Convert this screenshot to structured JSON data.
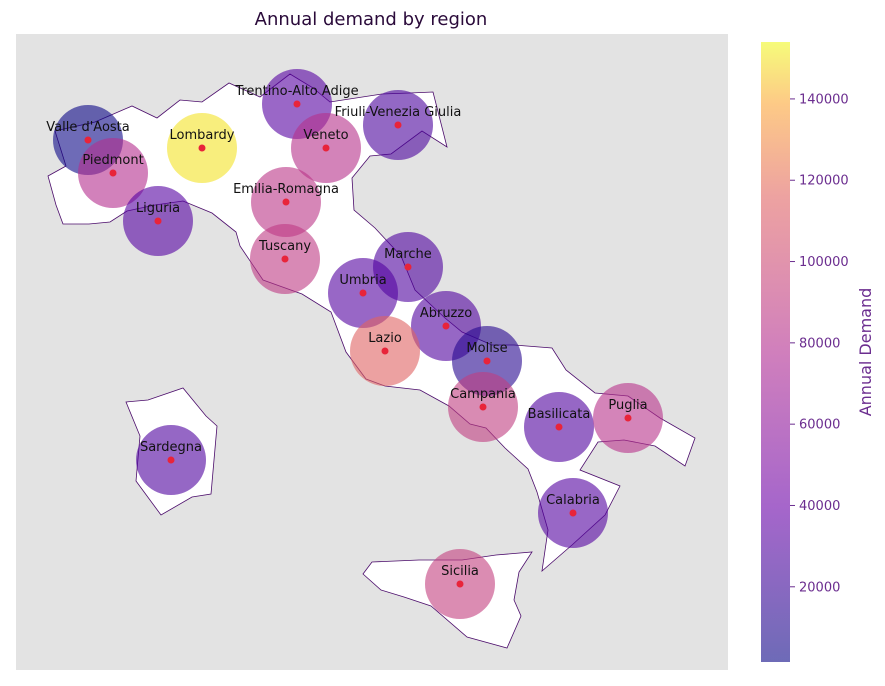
{
  "title": "Annual demand by region",
  "colorbar": {
    "label": "Annual Demand",
    "ticks": [
      20000,
      40000,
      60000,
      80000,
      100000,
      120000,
      140000
    ],
    "range": [
      1500,
      154000
    ],
    "colormap": "plasma",
    "alpha": 0.6
  },
  "colors": {
    "map_background": "#e3e3e3",
    "land_fill": "#ffffff",
    "border": "#4b0c6b",
    "point": "#e8243a",
    "tick_text": "#6b2d8f",
    "title_text": "#2a0a3a"
  },
  "regions": [
    {
      "name": "Valle d'Aosta",
      "demand": 1500
    },
    {
      "name": "Piedmont",
      "demand": 80000
    },
    {
      "name": "Lombardy",
      "demand": 150000
    },
    {
      "name": "Trentino-Alto Adige",
      "demand": 32000
    },
    {
      "name": "Veneto",
      "demand": 82000
    },
    {
      "name": "Friuli-Venezia Giulia",
      "demand": 27000
    },
    {
      "name": "Liguria",
      "demand": 31000
    },
    {
      "name": "Emilia-Romagna",
      "demand": 85000
    },
    {
      "name": "Tuscany",
      "demand": 88000
    },
    {
      "name": "Marche",
      "demand": 28000
    },
    {
      "name": "Umbria",
      "demand": 30000
    },
    {
      "name": "Abruzzo",
      "demand": 29000
    },
    {
      "name": "Lazio",
      "demand": 115000
    },
    {
      "name": "Molise",
      "demand": 12000
    },
    {
      "name": "Campania",
      "demand": 90000
    },
    {
      "name": "Basilicata",
      "demand": 29000
    },
    {
      "name": "Puglia",
      "demand": 83000
    },
    {
      "name": "Calabria",
      "demand": 30000
    },
    {
      "name": "Sicilia",
      "demand": 92000
    },
    {
      "name": "Sardegna",
      "demand": 28000
    }
  ]
}
